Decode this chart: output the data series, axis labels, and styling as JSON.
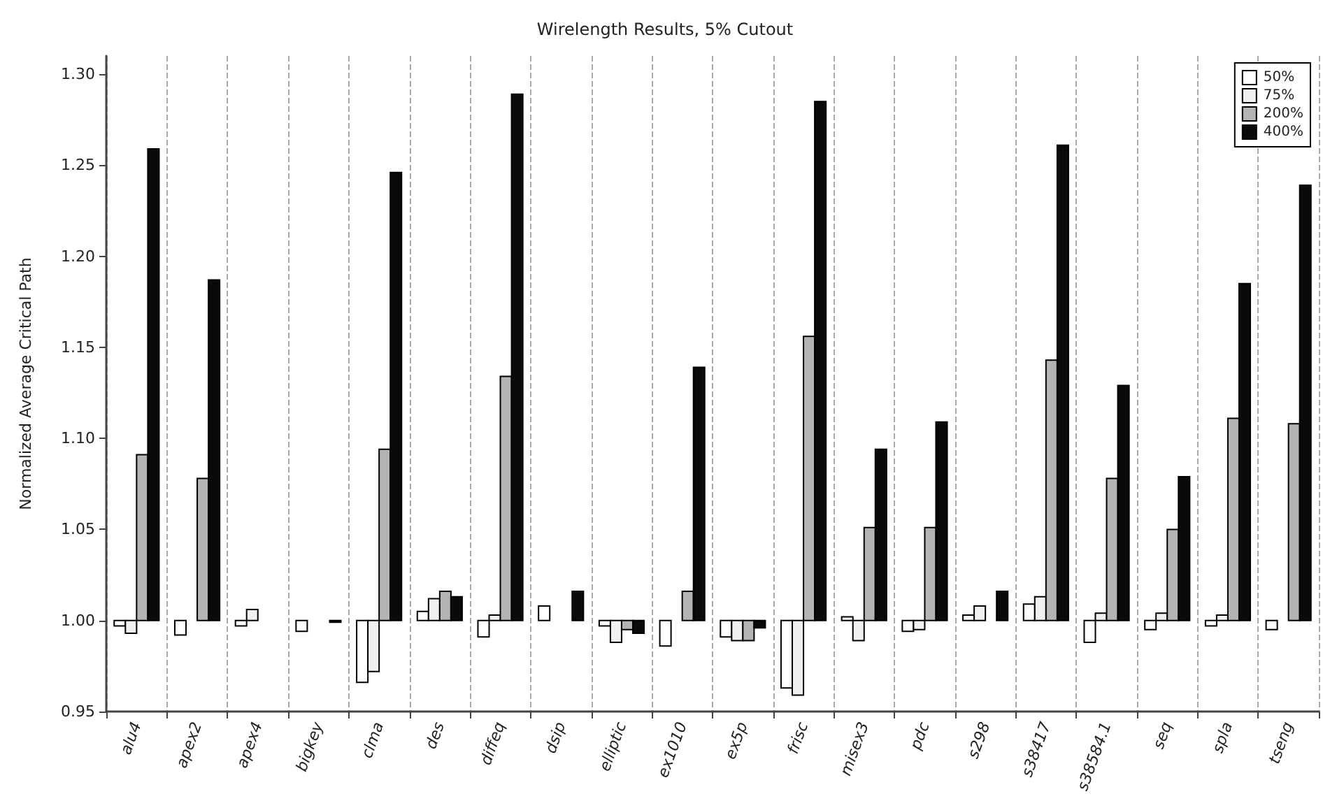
{
  "chart_data": {
    "type": "bar",
    "title": "Wirelength Results, 5% Cutout",
    "ylabel": "Normalized Average Critical Path",
    "categories": [
      "alu4",
      "apex2",
      "apex4",
      "bigkey",
      "clma",
      "des",
      "diffeq",
      "dsip",
      "elliptic",
      "ex1010",
      "ex5p",
      "frisc",
      "misex3",
      "pdc",
      "s298",
      "s38417",
      "s38584.1",
      "seq",
      "spla",
      "tseng"
    ],
    "series": [
      {
        "name": "50%",
        "color": "#ffffff",
        "base": [
          1,
          1,
          1,
          1,
          1,
          1,
          1,
          1,
          1,
          1,
          1,
          1,
          1,
          1,
          1,
          1,
          1,
          1,
          1,
          1
        ],
        "values": [
          -0.003,
          -0.008,
          -0.003,
          -0.006,
          -0.034,
          0.005,
          -0.009,
          0.008,
          -0.003,
          -0.014,
          -0.009,
          -0.037,
          0.002,
          -0.006,
          0.003,
          0.009,
          -0.012,
          -0.005,
          -0.003,
          -0.005
        ]
      },
      {
        "name": "75%",
        "color": "#f0f0f0",
        "base": [
          1,
          null,
          1,
          null,
          1,
          1,
          1,
          null,
          1,
          null,
          1,
          1,
          1,
          1,
          1,
          1,
          1,
          1,
          1,
          null
        ],
        "values": [
          -0.007,
          null,
          0.006,
          null,
          -0.028,
          0.012,
          0.003,
          null,
          -0.012,
          null,
          -0.011,
          -0.041,
          -0.011,
          -0.005,
          0.008,
          0.013,
          0.004,
          0.004,
          0.003,
          null
        ]
      },
      {
        "name": "200%",
        "color": "#b4b4b4",
        "base": [
          1,
          1,
          null,
          null,
          1,
          1,
          1,
          null,
          1,
          1,
          1,
          1,
          1,
          1,
          null,
          1,
          1,
          1,
          1,
          1
        ],
        "values": [
          0.091,
          0.078,
          null,
          null,
          0.094,
          0.016,
          0.134,
          null,
          -0.005,
          0.016,
          -0.011,
          0.156,
          0.051,
          0.051,
          null,
          0.143,
          0.078,
          0.05,
          0.111,
          0.108
        ]
      },
      {
        "name": "400%",
        "color": "#0a0a0a",
        "base": [
          1,
          1,
          null,
          1,
          1,
          1,
          1,
          1,
          1,
          1,
          1,
          1,
          1,
          1,
          1,
          1,
          1,
          1,
          1,
          1
        ],
        "values": [
          0.259,
          0.187,
          null,
          -0.001,
          0.246,
          0.013,
          0.289,
          0.016,
          -0.007,
          0.139,
          -0.004,
          0.285,
          0.094,
          0.109,
          0.016,
          0.261,
          0.129,
          0.079,
          0.185,
          0.239
        ]
      }
    ],
    "ylim": [
      0.95,
      1.31
    ],
    "yticks": [
      {
        "value": 0.95,
        "label": "0.95"
      },
      {
        "value": 1.0,
        "label": "1.00"
      },
      {
        "value": 1.05,
        "label": "1.05"
      },
      {
        "value": 1.1,
        "label": "1.10"
      },
      {
        "value": 1.15,
        "label": "1.15"
      },
      {
        "value": 1.2,
        "label": "1.20"
      },
      {
        "value": 1.25,
        "label": "1.25"
      },
      {
        "value": 1.3,
        "label": "1.30"
      }
    ],
    "grid": "x",
    "legend": "top right"
  }
}
